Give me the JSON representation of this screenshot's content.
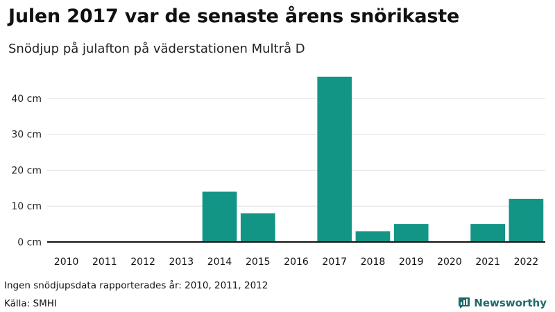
{
  "title": "Julen 2017 var de senaste årens snörikaste",
  "subtitle": "Snödjup på julafton på väderstationen Multrå D",
  "note": "Ingen snödjupsdata rapporterades år: 2010, 2011, 2012",
  "source": "Källa: SMHI",
  "brand": {
    "name": "Newsworthy",
    "icon": "newsworthy-logo-icon",
    "color": "#1e6a6a"
  },
  "colors": {
    "bar": "#139586",
    "grid": "#dddddd",
    "axis": "#111111"
  },
  "chart_data": {
    "type": "bar",
    "categories": [
      "2010",
      "2011",
      "2012",
      "2013",
      "2014",
      "2015",
      "2016",
      "2017",
      "2018",
      "2019",
      "2020",
      "2021",
      "2022"
    ],
    "values": [
      0,
      0,
      0,
      0,
      14,
      8,
      0,
      46,
      3,
      5,
      0,
      5,
      12
    ],
    "ylim": [
      0,
      50
    ],
    "yticks": [
      0,
      10,
      20,
      30,
      40
    ],
    "ytick_labels": [
      "0 cm",
      "10 cm",
      "20 cm",
      "30 cm",
      "40 cm"
    ],
    "grid": true,
    "xlabel": "",
    "ylabel": ""
  }
}
